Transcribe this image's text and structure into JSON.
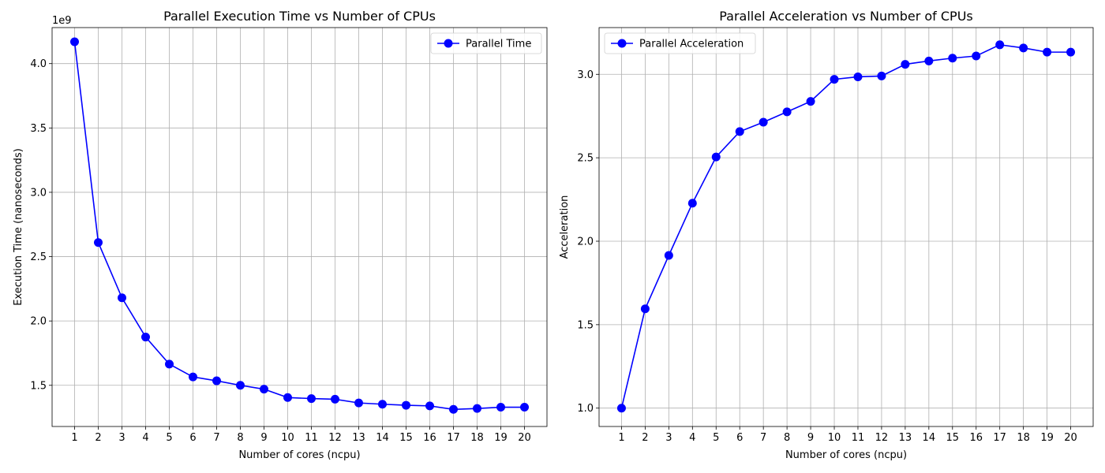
{
  "chart_data": [
    {
      "type": "line",
      "title": "Parallel Execution Time vs Number of CPUs",
      "xlabel": "Number of cores (ncpu)",
      "ylabel": "Execution Time (nanoseconds)",
      "y_offset_label": "1e9",
      "x": [
        1,
        2,
        3,
        4,
        5,
        6,
        7,
        8,
        9,
        10,
        11,
        12,
        13,
        14,
        15,
        16,
        17,
        18,
        19,
        20
      ],
      "x_ticks": [
        "1",
        "2",
        "3",
        "4",
        "5",
        "6",
        "7",
        "8",
        "9",
        "10",
        "11",
        "12",
        "13",
        "14",
        "15",
        "16",
        "17",
        "18",
        "19",
        "20"
      ],
      "y_ticks": [
        "1.5",
        "2.0",
        "2.5",
        "3.0",
        "3.5",
        "4.0"
      ],
      "y_tick_values": [
        1.5,
        2.0,
        2.5,
        3.0,
        3.5,
        4.0
      ],
      "ylim": [
        1.18,
        4.28
      ],
      "xlim": [
        0.05,
        20.95
      ],
      "series": [
        {
          "name": "Parallel Time",
          "values": [
            4.17,
            2.61,
            2.18,
            1.875,
            1.665,
            1.565,
            1.535,
            1.5,
            1.47,
            1.405,
            1.397,
            1.392,
            1.363,
            1.353,
            1.345,
            1.34,
            1.313,
            1.32,
            1.33,
            1.33
          ],
          "color": "#0000ff"
        }
      ],
      "legend": "upper right",
      "grid": true
    },
    {
      "type": "line",
      "title": "Parallel Acceleration vs Number of CPUs",
      "xlabel": "Number of cores (ncpu)",
      "ylabel": "Acceleration",
      "x": [
        1,
        2,
        3,
        4,
        5,
        6,
        7,
        8,
        9,
        10,
        11,
        12,
        13,
        14,
        15,
        16,
        17,
        18,
        19,
        20
      ],
      "x_ticks": [
        "1",
        "2",
        "3",
        "4",
        "5",
        "6",
        "7",
        "8",
        "9",
        "10",
        "11",
        "12",
        "13",
        "14",
        "15",
        "16",
        "17",
        "18",
        "19",
        "20"
      ],
      "y_ticks": [
        "1.0",
        "1.5",
        "2.0",
        "2.5",
        "3.0"
      ],
      "y_tick_values": [
        1.0,
        1.5,
        2.0,
        2.5,
        3.0
      ],
      "ylim": [
        0.89,
        3.28
      ],
      "xlim": [
        0.05,
        20.95
      ],
      "series": [
        {
          "name": "Parallel Acceleration",
          "values": [
            1.0,
            1.595,
            1.915,
            2.228,
            2.505,
            2.657,
            2.713,
            2.775,
            2.838,
            2.97,
            2.985,
            2.99,
            3.06,
            3.08,
            3.097,
            3.11,
            3.177,
            3.158,
            3.133,
            3.133
          ],
          "color": "#0000ff"
        }
      ],
      "legend": "upper left",
      "grid": true
    }
  ]
}
